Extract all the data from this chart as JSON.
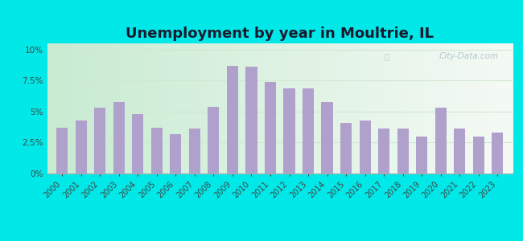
{
  "years": [
    2000,
    2001,
    2002,
    2003,
    2004,
    2005,
    2006,
    2007,
    2008,
    2009,
    2010,
    2011,
    2012,
    2013,
    2014,
    2015,
    2016,
    2017,
    2018,
    2019,
    2020,
    2021,
    2022,
    2023
  ],
  "values": [
    3.7,
    4.3,
    5.3,
    5.8,
    4.8,
    3.7,
    3.2,
    3.6,
    5.4,
    8.7,
    8.6,
    7.4,
    6.9,
    6.9,
    5.8,
    4.1,
    4.3,
    3.6,
    3.6,
    3.0,
    5.3,
    3.6,
    3.0,
    3.3
  ],
  "bar_color": "#b0a0cc",
  "title": "Unemployment by year in Moultrie, IL",
  "title_fontsize": 13,
  "yticks": [
    0,
    2.5,
    5.0,
    7.5,
    10.0
  ],
  "ylim": [
    0,
    10.5
  ],
  "bg_color_topleft": "#c8ecd8",
  "bg_color_topright": "#e8f5f0",
  "bg_color_bottom": "#e8f5e8",
  "outer_bg": "#00e8e8",
  "watermark": "City-Data.com",
  "grid_color": "#d0e8d0"
}
